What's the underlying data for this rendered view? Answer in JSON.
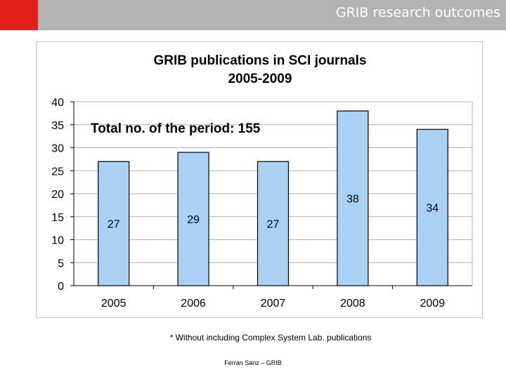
{
  "header": {
    "title": "GRIB research outcomes",
    "accent_color": "#e3211c",
    "bar_color": "#b3b3b3"
  },
  "chart_data": {
    "type": "bar",
    "title": "GRIB publications in SCI journals",
    "subtitle": "2005-2009",
    "annotation": "Total no. of the period: 155",
    "categories": [
      "2005",
      "2006",
      "2007",
      "2008",
      "2009"
    ],
    "values": [
      27,
      29,
      27,
      38,
      34
    ],
    "value_labels": [
      "27",
      "29",
      "27",
      "38",
      "34"
    ],
    "ylim": [
      0,
      40
    ],
    "yticks": [
      0,
      5,
      10,
      15,
      20,
      25,
      30,
      35,
      40
    ],
    "ytick_labels": [
      "0",
      "5",
      "10",
      "15",
      "20",
      "25",
      "30",
      "35",
      "40"
    ],
    "grid": true,
    "xlabel": "",
    "ylabel": "",
    "bar_color": "#a9d0f5",
    "bar_edge_color": "#000000"
  },
  "footnote": "* Without including Complex System Lab. publications",
  "footer": "Ferran Sanz – GRIB"
}
